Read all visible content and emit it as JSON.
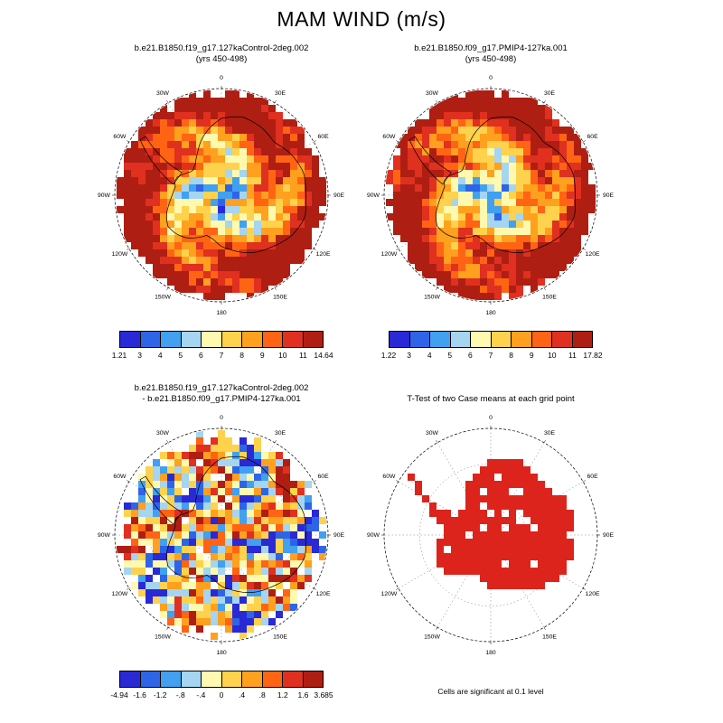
{
  "page_title": "MAM WIND (m/s)",
  "palette": [
    "#2929D6",
    "#2E64E8",
    "#41A0F0",
    "#A5D5F0",
    "#FFF9B0",
    "#FFD24D",
    "#FFA01E",
    "#FF6414",
    "#E03020",
    "#AF1E12"
  ],
  "ttest_color": "#DC241C",
  "longitude_labels": [
    {
      "label": "0",
      "angle": 0
    },
    {
      "label": "30E",
      "angle": 30
    },
    {
      "label": "60E",
      "angle": 60
    },
    {
      "label": "90E",
      "angle": 90
    },
    {
      "label": "120E",
      "angle": 120
    },
    {
      "label": "150E",
      "angle": 150
    },
    {
      "label": "180",
      "angle": 180
    },
    {
      "label": "150W",
      "angle": 210
    },
    {
      "label": "120W",
      "angle": 240
    },
    {
      "label": "90W",
      "angle": 270
    },
    {
      "label": "60W",
      "angle": 300
    },
    {
      "label": "30W",
      "angle": 330
    }
  ],
  "panels": {
    "control": {
      "title1": "b.e21.B1850.f19_g17.127kaControl-2deg.002",
      "title2": "(yrs 450-498)",
      "colorbar_labels": [
        "1.21",
        "3",
        "4",
        "5",
        "6",
        "7",
        "8",
        "9",
        "10",
        "11",
        "14.64"
      ]
    },
    "pmip4": {
      "title1": "b.e21.B1850.f09_g17.PMIP4-127ka.001",
      "title2": "(yrs 450-498)",
      "colorbar_labels": [
        "1.22",
        "3",
        "4",
        "5",
        "6",
        "7",
        "8",
        "9",
        "10",
        "11",
        "17.82"
      ]
    },
    "diff": {
      "title1": "b.e21.B1850.f19_g17.127kaControl-2deg.002",
      "title2": "- b.e21.B1850.f09_g17.PMIP4-127ka.001",
      "colorbar_labels": [
        "-4.94",
        "-1.6",
        "-1.2",
        "-.8",
        "-.4",
        "0",
        ".4",
        ".8",
        "1.2",
        "1.6",
        "3.685"
      ]
    },
    "ttest": {
      "title1": "T-Test of two Case means at each grid point",
      "note": "Cells are significant at 0.1 level"
    }
  },
  "chart_data": [
    {
      "type": "heatmap",
      "projection": "south_polar_stereographic",
      "region": "Antarctica / Southern Ocean",
      "title": "b.e21.B1850.f19_g17.127kaControl-2deg.002",
      "subtitle": "(yrs 450-498)",
      "variable": "MAM WIND (m/s)",
      "colorbar_levels": [
        1.21,
        3,
        4,
        5,
        6,
        7,
        8,
        9,
        10,
        11,
        14.64
      ],
      "value_min": 1.21,
      "value_max": 14.64,
      "n_color_bins": 10,
      "longitude_gridline_spacing_deg": 30,
      "longitude_labels": [
        "0",
        "30E",
        "60E",
        "90E",
        "120E",
        "150E",
        "180",
        "150W",
        "120W",
        "90W",
        "60W",
        "30W"
      ]
    },
    {
      "type": "heatmap",
      "projection": "south_polar_stereographic",
      "region": "Antarctica / Southern Ocean",
      "title": "b.e21.B1850.f09_g17.PMIP4-127ka.001",
      "subtitle": "(yrs 450-498)",
      "variable": "MAM WIND (m/s)",
      "colorbar_levels": [
        1.22,
        3,
        4,
        5,
        6,
        7,
        8,
        9,
        10,
        11,
        17.82
      ],
      "value_min": 1.22,
      "value_max": 17.82,
      "n_color_bins": 10,
      "longitude_gridline_spacing_deg": 30,
      "longitude_labels": [
        "0",
        "30E",
        "60E",
        "90E",
        "120E",
        "150E",
        "180",
        "150W",
        "120W",
        "90W",
        "60W",
        "30W"
      ]
    },
    {
      "type": "heatmap",
      "projection": "south_polar_stereographic",
      "region": "Antarctica / Southern Ocean",
      "title": "b.e21.B1850.f19_g17.127kaControl-2deg.002 - b.e21.B1850.f09_g17.PMIP4-127ka.001",
      "variable": "MAM WIND difference (m/s)",
      "colorbar_levels": [
        -4.94,
        -1.6,
        -1.2,
        -0.8,
        -0.4,
        0,
        0.4,
        0.8,
        1.2,
        1.6,
        3.685
      ],
      "value_min": -4.94,
      "value_max": 3.685,
      "n_color_bins": 10,
      "longitude_gridline_spacing_deg": 30,
      "longitude_labels": [
        "0",
        "30E",
        "60E",
        "90E",
        "120E",
        "150E",
        "180",
        "150W",
        "120W",
        "90W",
        "60W",
        "30W"
      ]
    },
    {
      "type": "heatmap",
      "projection": "south_polar_stereographic",
      "region": "Antarctica",
      "title": "T-Test of two Case means at each grid point",
      "note": "Cells are significant at 0.1 level",
      "significance_level": 0.1,
      "significant_color": "#DC241C",
      "longitude_gridline_spacing_deg": 30,
      "longitude_labels": [
        "0",
        "30E",
        "60E",
        "90E",
        "120E",
        "150E",
        "180",
        "150W",
        "120W",
        "90W",
        "60W",
        "30W"
      ]
    }
  ]
}
